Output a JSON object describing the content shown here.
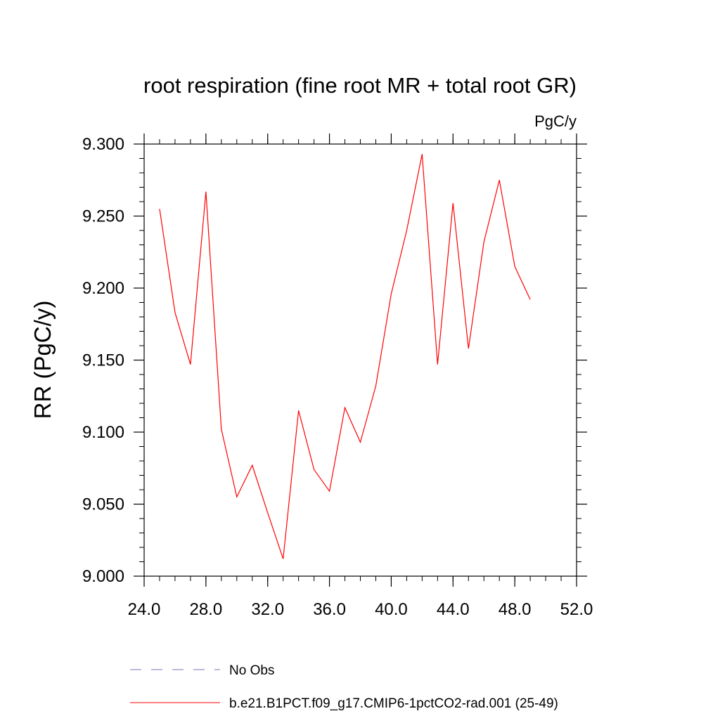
{
  "chart_data": {
    "type": "line",
    "title": "root respiration (fine root MR + total root GR)",
    "units_label": "PgC/y",
    "xlabel": "",
    "ylabel": "RR  (PgC/y)",
    "xlim": [
      24.0,
      52.0
    ],
    "ylim": [
      9.0,
      9.3
    ],
    "x_ticks": [
      24.0,
      28.0,
      32.0,
      36.0,
      40.0,
      44.0,
      48.0,
      52.0
    ],
    "x_tick_labels": [
      "24.0",
      "28.0",
      "32.0",
      "36.0",
      "40.0",
      "44.0",
      "48.0",
      "52.0"
    ],
    "y_ticks": [
      9.0,
      9.05,
      9.1,
      9.15,
      9.2,
      9.25,
      9.3
    ],
    "y_tick_labels": [
      "9.000",
      "9.050",
      "9.100",
      "9.150",
      "9.200",
      "9.250",
      "9.300"
    ],
    "x_minor_step": 1.0,
    "y_minor_step": 0.01,
    "grid": false,
    "legend_position": "bottom",
    "legend": [
      {
        "label": "No Obs",
        "color": "#7a75b8",
        "dash": true
      },
      {
        "label": "b.e21.B1PCT.f09_g17.CMIP6-1pctCO2-rad.001 (25-49)",
        "color": "#ff0000",
        "dash": false
      }
    ],
    "series": [
      {
        "name": "b.e21.B1PCT.f09_g17.CMIP6-1pctCO2-rad.001 (25-49)",
        "color": "#ff0000",
        "x": [
          25,
          26,
          27,
          28,
          29,
          30,
          31,
          32,
          33,
          34,
          35,
          36,
          37,
          38,
          39,
          40,
          41,
          42,
          43,
          44,
          45,
          46,
          47,
          48,
          49
        ],
        "y": [
          9.255,
          9.183,
          9.147,
          9.267,
          9.102,
          9.055,
          9.077,
          9.044,
          9.012,
          9.115,
          9.074,
          9.059,
          9.117,
          9.093,
          9.132,
          9.196,
          9.24,
          9.293,
          9.147,
          9.259,
          9.158,
          9.232,
          9.275,
          9.215,
          9.192
        ]
      }
    ]
  }
}
